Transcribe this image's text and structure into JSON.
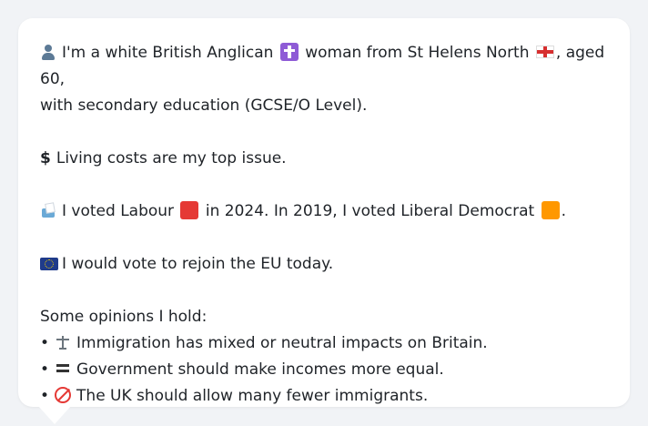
{
  "card": {
    "lines": [
      {
        "id": "identity",
        "text_before": "I'm a white British Anglican",
        "text_mid": "woman from St Helens North",
        "text_after": ", aged 60,",
        "line2": "with secondary education (GCSE/O Level)."
      },
      {
        "id": "top_issue",
        "text": "Living costs are my top issue."
      },
      {
        "id": "votes",
        "text_1": "I voted Labour",
        "text_2": "in 2024. In 2019, I voted Liberal Democrat",
        "text_3": "."
      },
      {
        "id": "eu",
        "text": "I would vote to rejoin the EU today."
      }
    ],
    "opinions": {
      "header": "Some opinions I hold:",
      "items": [
        "Immigration has mixed or neutral impacts on Britain.",
        "Government should make incomes more equal.",
        "The UK should allow many fewer immigrants."
      ]
    }
  },
  "colors": {
    "labour": "#e53935",
    "libdem": "#ff9800",
    "anglican": "#8e5bd6",
    "eu": "#1f3b8a"
  },
  "icons": {
    "person": "bust-in-silhouette-icon",
    "religion": "latin-cross-icon",
    "region": "england-flag-icon",
    "money": "dollar-icon",
    "ballot": "ballot-box-icon",
    "labour": "red-square-icon",
    "libdem": "orange-square-icon",
    "eu": "eu-flag-icon",
    "balance": "scales-icon",
    "equal": "equals-icon",
    "fewer": "prohibited-icon"
  }
}
